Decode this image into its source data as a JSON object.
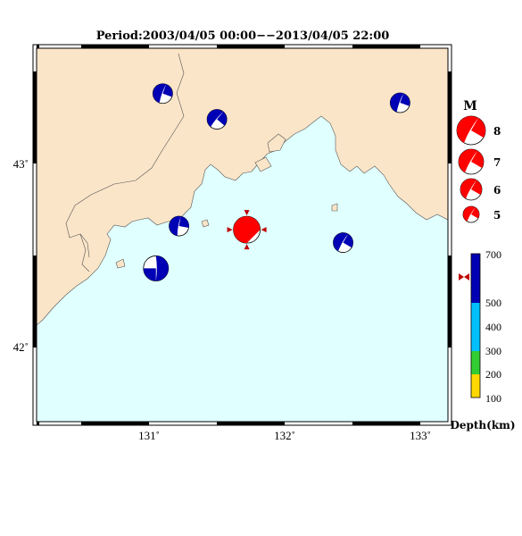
{
  "title": "Period:2003/04/05 00:00−−2013/04/05 22:00",
  "axes": {
    "lon_ticks": [
      "131˚",
      "132˚",
      "133˚"
    ],
    "lat_ticks": [
      "43˚",
      "42˚"
    ]
  },
  "colors": {
    "land": "#fbe5c8",
    "sea": "#e0ffff",
    "deep_mechanism": "#0000b4",
    "main_mechanism": "#ff0000",
    "depth_marker": "#c00000"
  },
  "magnitude_legend": {
    "title": "M",
    "items": [
      "8",
      "7",
      "6",
      "5"
    ]
  },
  "depth_scale": {
    "title": "Depth(km)",
    "labels": [
      "700",
      "500",
      "400",
      "300",
      "200",
      "100"
    ],
    "colors": [
      "#0000b4",
      "#00bfff",
      "#32cd32",
      "#ffd700"
    ]
  },
  "events": [
    {
      "type": "deep",
      "lon": 131.1,
      "lat": 43.38
    },
    {
      "type": "deep",
      "lon": 131.5,
      "lat": 43.24
    },
    {
      "type": "deep",
      "lon": 132.85,
      "lat": 43.33
    },
    {
      "type": "deep",
      "lon": 131.22,
      "lat": 42.66
    },
    {
      "type": "deep",
      "lon": 131.05,
      "lat": 42.43
    },
    {
      "type": "deep",
      "lon": 132.43,
      "lat": 42.57
    },
    {
      "type": "main",
      "lon": 131.72,
      "lat": 42.64
    }
  ]
}
